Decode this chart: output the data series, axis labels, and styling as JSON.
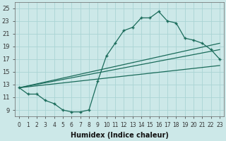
{
  "xlabel": "Humidex (Indice chaleur)",
  "background_color": "#cce8e8",
  "line_color": "#1a6b5a",
  "xlim": [
    -0.5,
    23.5
  ],
  "ylim": [
    8.0,
    26.0
  ],
  "xticks": [
    0,
    1,
    2,
    3,
    4,
    5,
    6,
    7,
    8,
    9,
    10,
    11,
    12,
    13,
    14,
    15,
    16,
    17,
    18,
    19,
    20,
    21,
    22,
    23
  ],
  "yticks": [
    9,
    11,
    13,
    15,
    17,
    19,
    21,
    23,
    25
  ],
  "main_line_x": [
    0,
    1,
    2,
    3,
    4,
    5,
    6,
    7,
    8,
    9,
    10,
    11,
    12,
    13,
    14,
    15,
    16,
    17,
    18,
    19,
    20,
    21,
    22,
    23
  ],
  "main_line_y": [
    12.5,
    11.5,
    11.5,
    10.5,
    10.0,
    9.0,
    8.7,
    8.7,
    9.0,
    13.5,
    17.5,
    19.5,
    21.5,
    22.0,
    23.5,
    23.5,
    24.5,
    23.0,
    22.7,
    20.3,
    20.0,
    19.5,
    18.5,
    17.0
  ],
  "line2_x": [
    0,
    23
  ],
  "line2_y": [
    12.5,
    19.5
  ],
  "line3_x": [
    0,
    23
  ],
  "line3_y": [
    12.5,
    18.5
  ],
  "line4_x": [
    0,
    23
  ],
  "line4_y": [
    12.5,
    16.0
  ],
  "grid_color": "#aad4d4",
  "xtick_fontsize": 5.5,
  "ytick_fontsize": 6.0,
  "xlabel_fontsize": 7.0
}
